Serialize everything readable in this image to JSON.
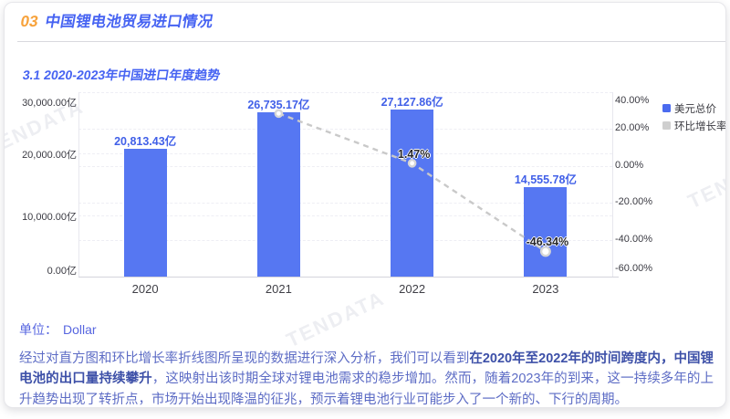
{
  "header": {
    "number": "03",
    "title": "中国锂电池贸易进口情况"
  },
  "section": {
    "title": "3.1 2020-2023年中国进口年度趋势"
  },
  "chart_data": {
    "type": "bar",
    "categories": [
      "2020",
      "2021",
      "2022",
      "2023"
    ],
    "series": [
      {
        "name": "美元总价",
        "type": "bar",
        "unit": "亿",
        "values": [
          20813.43,
          26735.17,
          27127.86,
          14555.78
        ],
        "labels": [
          "20,813.43亿",
          "26,735.17亿",
          "27,127.86亿",
          "14,555.78亿"
        ],
        "color": "#5677f2"
      },
      {
        "name": "环比增长率",
        "type": "line",
        "unit": "%",
        "values": [
          null,
          28.45,
          1.47,
          -46.34
        ],
        "labels": [
          null,
          null,
          "1.47%",
          "-46.34%"
        ],
        "color": "#c9c9c9"
      }
    ],
    "left_axis": {
      "ticks": [
        "30,000.00亿",
        "20,000.00亿",
        "10,000.00亿",
        "0.00亿"
      ],
      "min": 0,
      "max": 30000
    },
    "right_axis": {
      "ticks": [
        "40.00%",
        "20.00%",
        "0.00%",
        "-20.00%",
        "-40.00%",
        "-60.00%"
      ],
      "min": -60,
      "max": 40
    },
    "legend": [
      {
        "label": "美元总价",
        "color": "#4b6bef"
      },
      {
        "label": "环比增长率",
        "color": "#cfcfcf"
      }
    ],
    "title": "3.1 2020-2023年中国进口年度趋势",
    "grid": true,
    "legend_position": "right"
  },
  "unit_note": {
    "label": "单位：",
    "value": "Dollar"
  },
  "analysis": {
    "segments": [
      {
        "text": "经过对直方图和环比增长率折线图所呈现的数据进行深入分析，我们可以看到",
        "bold": false
      },
      {
        "text": "在2020年至2022年的时间跨度内，中国锂电池的出口量持续攀升",
        "bold": true
      },
      {
        "text": "，这映射出该时期全球对锂电池需求的稳步增加。然而，随着2023年的到来，这一持续多年的上升趋势出现了转折点，市场开始出现降温的征兆，预示着锂电池行业可能步入了一个新的、下行的周期。",
        "bold": false
      }
    ]
  },
  "watermark": {
    "text": "TENDATA"
  }
}
